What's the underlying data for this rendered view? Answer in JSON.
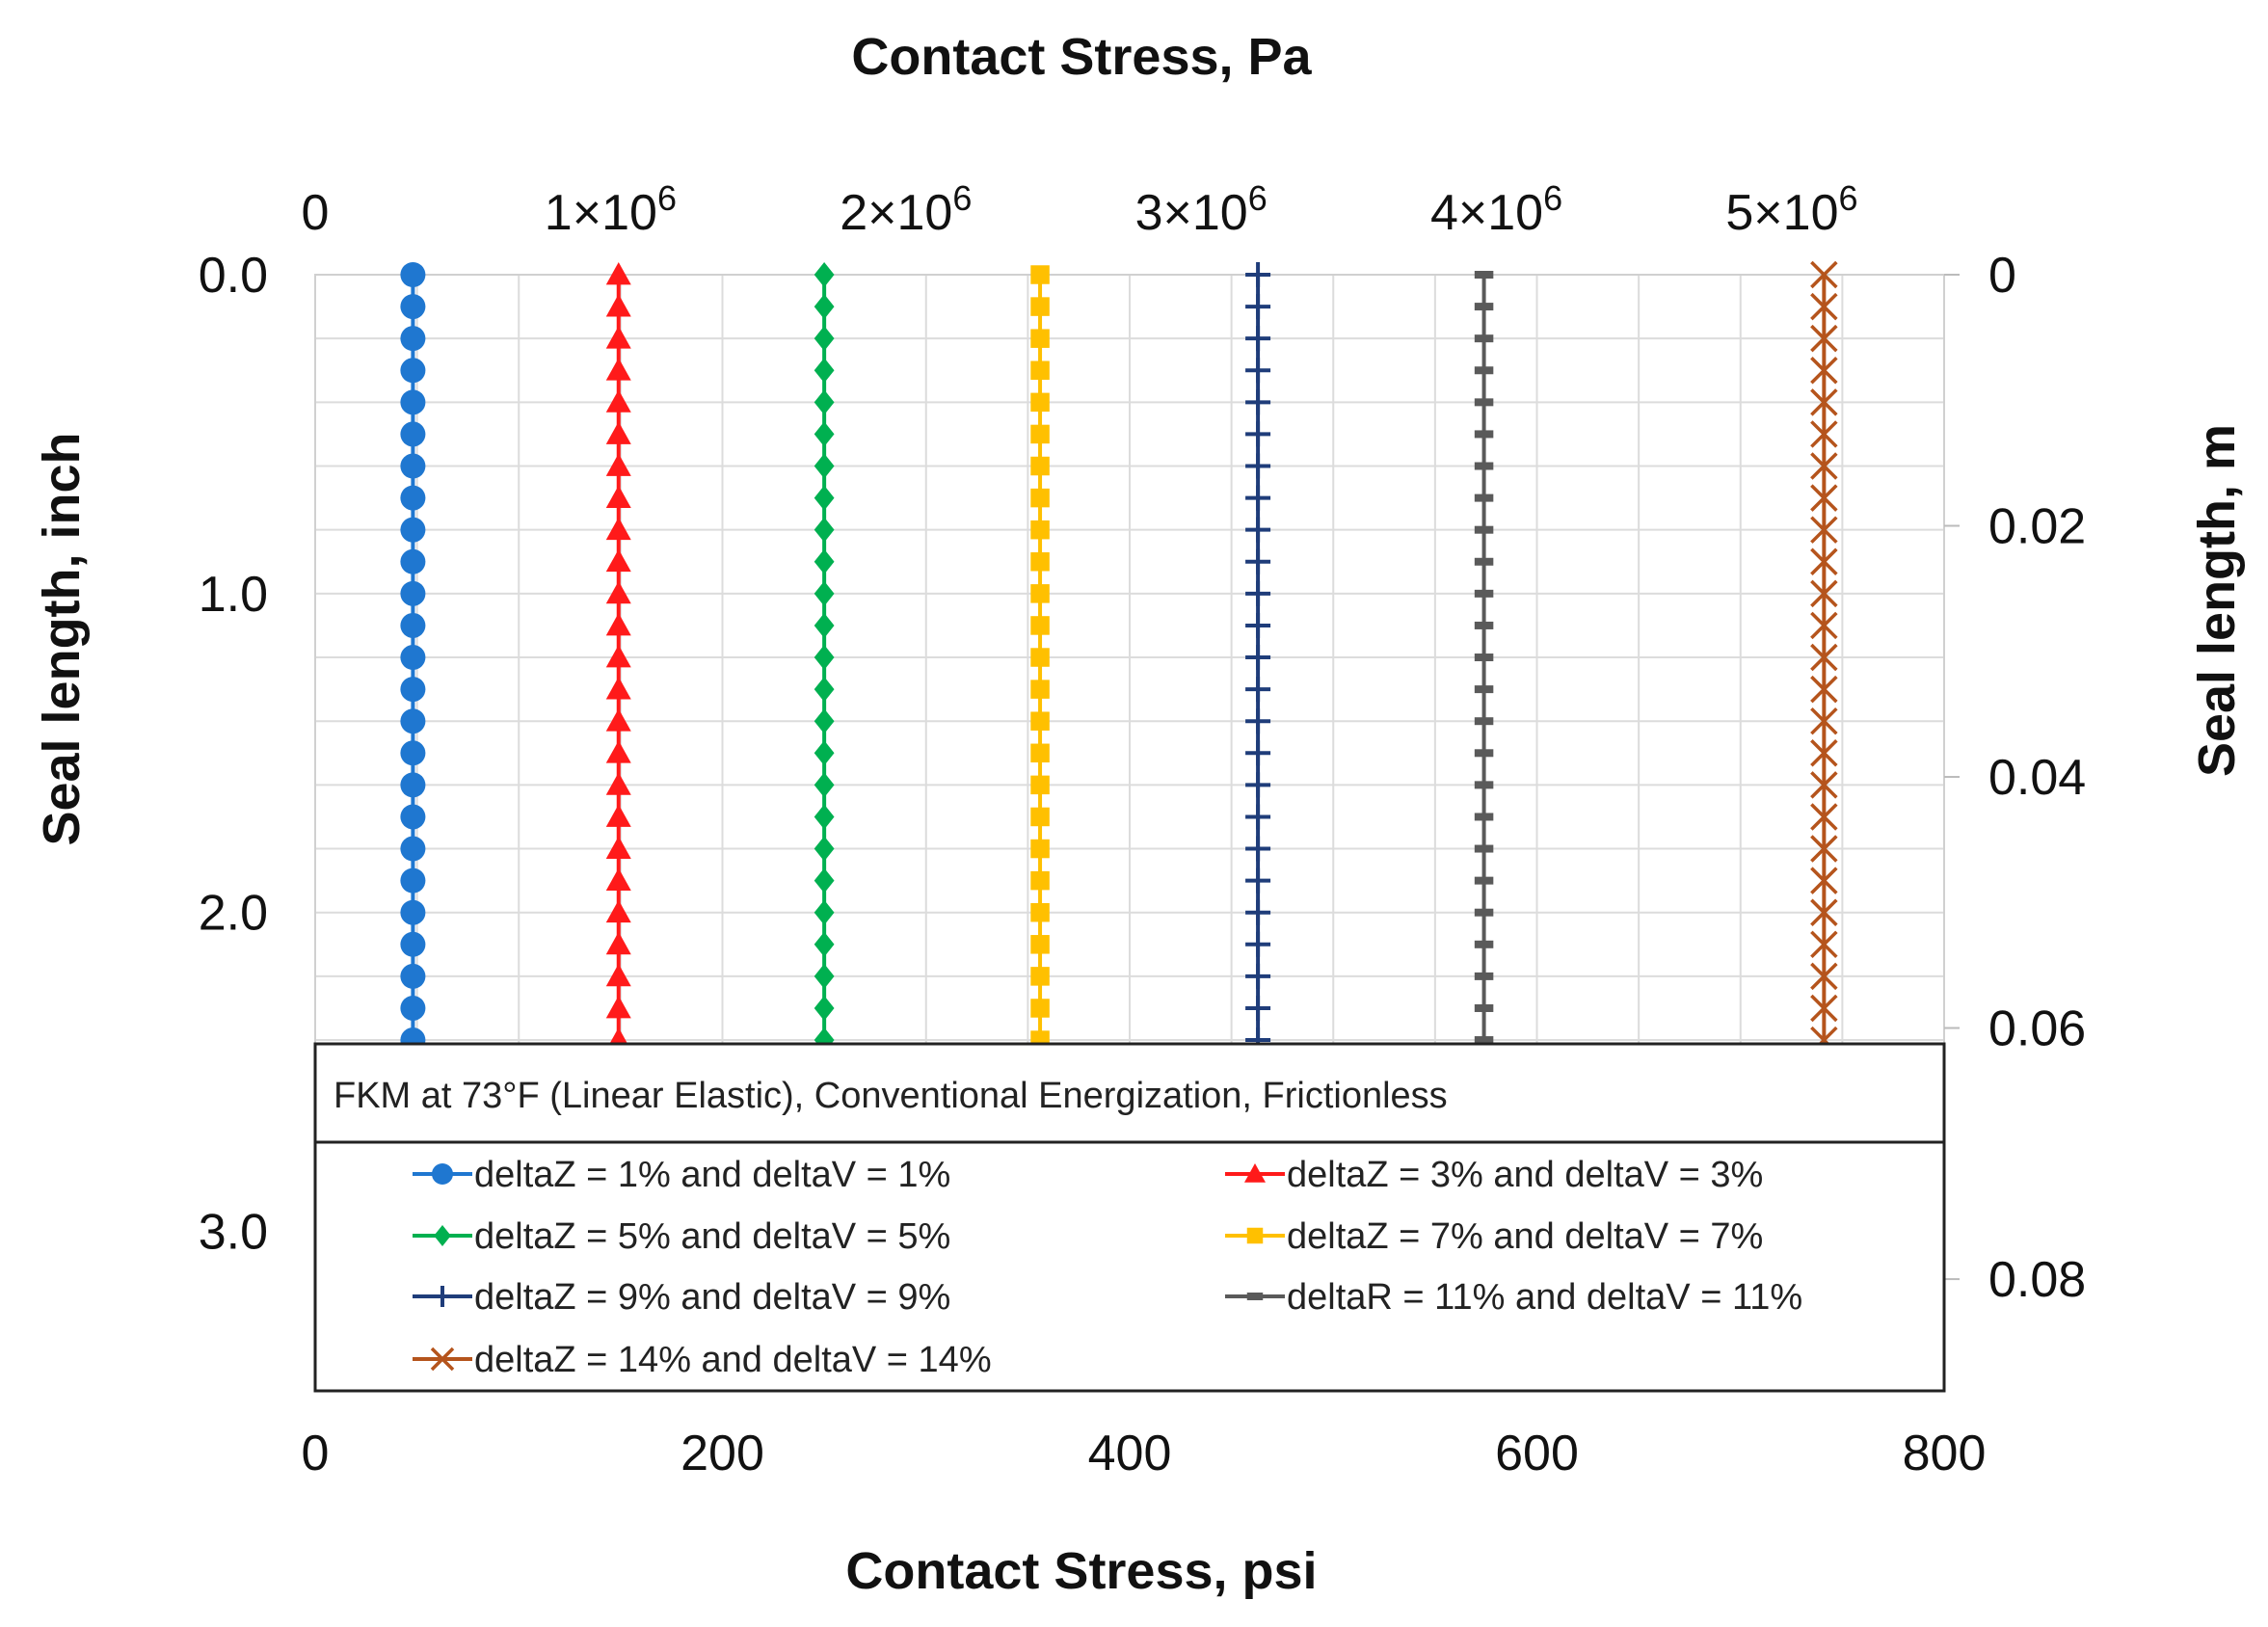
{
  "chart_data": {
    "type": "line",
    "title": "",
    "x_bottom": {
      "label": "Contact Stress, psi",
      "range": [
        0,
        800
      ],
      "ticks": [
        0,
        200,
        400,
        600,
        800
      ],
      "tick_labels": [
        "0",
        "200",
        "400",
        "600",
        "800"
      ]
    },
    "x_top": {
      "label": "Contact Stress, Pa",
      "ticks": [
        {
          "mantissa": "0",
          "exponent": "",
          "psi": 0
        },
        {
          "mantissa": "1×10",
          "exponent": "6",
          "psi": 145.04
        },
        {
          "mantissa": "2×10",
          "exponent": "6",
          "psi": 290.08
        },
        {
          "mantissa": "3×10",
          "exponent": "6",
          "psi": 435.11
        },
        {
          "mantissa": "4×10",
          "exponent": "6",
          "psi": 580.15
        },
        {
          "mantissa": "5×10",
          "exponent": "6",
          "psi": 725.19
        }
      ]
    },
    "y_left": {
      "label": "Seal length, inch",
      "range": [
        0,
        3.5
      ],
      "inverted": true,
      "ticks": [
        0.0,
        1.0,
        2.0,
        3.0
      ],
      "tick_labels": [
        "0.0",
        "1.0",
        "2.0",
        "3.0"
      ]
    },
    "y_right": {
      "label": "Seal length, m",
      "ticks": [
        0,
        0.02,
        0.04,
        0.06,
        0.08
      ],
      "tick_labels": [
        "0",
        "0.02",
        "0.04",
        "0.06",
        "0.08"
      ]
    },
    "y_points": [
      0.0,
      0.1,
      0.2,
      0.3,
      0.4,
      0.5,
      0.6,
      0.7,
      0.8,
      0.9,
      1.0,
      1.1,
      1.2,
      1.3,
      1.4,
      1.5,
      1.6,
      1.7,
      1.8,
      1.9,
      2.0,
      2.1,
      2.2,
      2.3,
      2.4
    ],
    "series": [
      {
        "name": "deltaZ = 1%  and deltaV = 1%",
        "stress_psi": 48,
        "color": "#1f77d0",
        "marker": "circle"
      },
      {
        "name": "deltaZ = 3%  and deltaV = 3%",
        "stress_psi": 149,
        "color": "#ff1a1a",
        "marker": "triangle"
      },
      {
        "name": "deltaZ = 5%  and deltaV = 5%",
        "stress_psi": 250,
        "color": "#00b050",
        "marker": "diamond"
      },
      {
        "name": "deltaZ = 7%  and deltaV = 7%",
        "stress_psi": 356,
        "color": "#ffc000",
        "marker": "square"
      },
      {
        "name": "deltaZ = 9%  and deltaV = 9%",
        "stress_psi": 463,
        "color": "#1f3d7a",
        "marker": "plus"
      },
      {
        "name": "deltaR = 11%  and deltaV = 11%",
        "stress_psi": 574,
        "color": "#5a5a5a",
        "marker": "dash"
      },
      {
        "name": "deltaZ = 14%  and deltaV = 14%",
        "stress_psi": 741,
        "color": "#b5541c",
        "marker": "x"
      }
    ],
    "legend": {
      "title": "FKM at 73°F (Linear Elastic), Conventional Energization, Frictionless",
      "placement": "bottom, inside plot"
    },
    "grid": true
  }
}
